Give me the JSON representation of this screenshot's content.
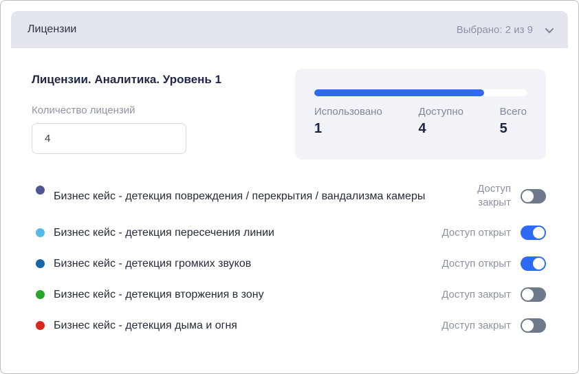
{
  "header": {
    "title": "Лицензии",
    "selected_label": "Выбрано: 2 из 9"
  },
  "section": {
    "title": "Лицензии. Аналитика. Уровень 1",
    "license_count": {
      "label": "Количество лицензий",
      "value": "4"
    },
    "usage": {
      "progress_percent": 80,
      "stats": [
        {
          "label": "Использовано",
          "value": "1"
        },
        {
          "label": "Доступно",
          "value": "4"
        },
        {
          "label": "Всего",
          "value": "5"
        }
      ]
    },
    "cases": [
      {
        "dot_color": "#4f5790",
        "label": "Бизнес кейс - детекция повреждения / перекрытия / вандализма камеры",
        "status": "Доступ закрыт",
        "enabled": false
      },
      {
        "dot_color": "#56b9e8",
        "label": "Бизнес кейс - детекция пересечения линии",
        "status": "Доступ открыт",
        "enabled": true
      },
      {
        "dot_color": "#1565a8",
        "label": "Бизнес кейс - детекция громких звуков",
        "status": "Доступ открыт",
        "enabled": true
      },
      {
        "dot_color": "#27a52c",
        "label": "Бизнес кейс - детекция вторжения в зону",
        "status": "Доступ закрыт",
        "enabled": false
      },
      {
        "dot_color": "#d6281c",
        "label": "Бизнес кейс - детекция дыма и огня",
        "status": "Доступ закрыт",
        "enabled": false
      }
    ]
  },
  "colors": {
    "accent_blue": "#2f6af5",
    "toggle_off_gray": "#6e7a8a",
    "header_bg": "#e3e5ef",
    "stats_card_bg": "#f2f3f8"
  }
}
